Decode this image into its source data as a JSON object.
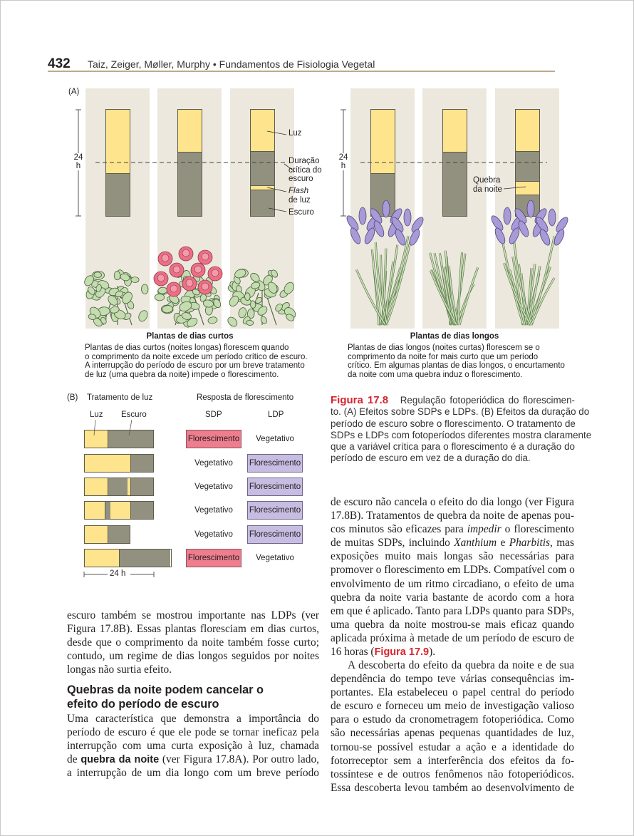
{
  "header": {
    "page_number": "432",
    "running_title": "Taiz, Zeiger, Møller, Murphy • Fundamentos de Fisiologia Vegetal"
  },
  "colors": {
    "light": "#fde48d",
    "dark": "#929180",
    "panel": "#ede8dd",
    "sdp_flowering": "#ee7d8e",
    "ldp_flowering": "#c7bde2",
    "accent_red": "#d7232e",
    "rule": "#bfa98c"
  },
  "figure_a": {
    "label": "(A)",
    "scale_label_top": "24",
    "scale_label_bottom": "h",
    "sdp_panels": [
      {
        "segments": [
          [
            "L",
            14.5
          ],
          [
            "D",
            9.5
          ]
        ],
        "flowering": false
      },
      {
        "segments": [
          [
            "L",
            9.5
          ],
          [
            "D",
            14.5
          ]
        ],
        "flowering": true
      },
      {
        "segments": [
          [
            "L",
            9.5
          ],
          [
            "D",
            7.8
          ],
          [
            "L",
            0.8
          ],
          [
            "D",
            5.9
          ]
        ],
        "flowering": false
      }
    ],
    "ldp_panels": [
      {
        "segments": [
          [
            "L",
            14.5
          ],
          [
            "D",
            9.5
          ]
        ],
        "flowering": true
      },
      {
        "segments": [
          [
            "L",
            9.5
          ],
          [
            "D",
            14.5
          ]
        ],
        "flowering": false
      },
      {
        "segments": [
          [
            "L",
            9.5
          ],
          [
            "D",
            6.8
          ],
          [
            "L",
            2.9
          ],
          [
            "D",
            4.8
          ]
        ],
        "flowering": true
      }
    ],
    "annotations": {
      "light": "Luz",
      "critical": [
        "Duração",
        "crítica do",
        "escuro"
      ],
      "flash": [
        "Flash",
        "de luz"
      ],
      "dark": "Escuro",
      "night_break": [
        "Quebra",
        "da noite"
      ]
    },
    "sdp_caption": {
      "title": "Plantas de dias curtos",
      "lines": [
        "Plantas de dias curtos (noites longas) florescem quando",
        "o comprimento da noite excede um período crítico de escuro.",
        "A interrupção do período de escuro por um breve tratamento",
        "de luz (uma quebra da noite) impede o florescimento."
      ]
    },
    "ldp_caption": {
      "title": "Plantas de dias longos",
      "lines": [
        "Plantas de dias longos (noites curtas) florescem se o",
        "comprimento da noite for mais curto que um período",
        "crítico. Em algumas plantas de dias longos, o encurtamento",
        "da noite com uma quebra induz o florescimento."
      ]
    }
  },
  "figure_b": {
    "label": "(B)",
    "treatment_heading": "Tratamento de luz",
    "response_heading": "Resposta de florescimento",
    "legend_light": "Luz",
    "legend_dark": "Escuro",
    "col_sdp": "SDP",
    "col_ldp": "LDP",
    "scale_label": "24 h",
    "rows": [
      {
        "segments": [
          [
            "L",
            8
          ],
          [
            "D",
            16
          ]
        ],
        "sdp": "Florescimento",
        "ldp": "Vegetativo"
      },
      {
        "segments": [
          [
            "L",
            16
          ],
          [
            "D",
            8
          ]
        ],
        "sdp": "Vegetativo",
        "ldp": "Florescimento"
      },
      {
        "segments": [
          [
            "L",
            8
          ],
          [
            "D",
            7
          ],
          [
            "L",
            1
          ],
          [
            "D",
            8
          ]
        ],
        "sdp": "Vegetativo",
        "ldp": "Florescimento"
      },
      {
        "segments": [
          [
            "L",
            7
          ],
          [
            "D",
            2
          ],
          [
            "L",
            7
          ],
          [
            "D",
            8
          ]
        ],
        "sdp": "Vegetativo",
        "ldp": "Florescimento"
      },
      {
        "segments": [
          [
            "L",
            8
          ],
          [
            "D",
            8
          ]
        ],
        "sdp": "Vegetativo",
        "ldp": "Florescimento"
      },
      {
        "segments": [
          [
            "L",
            12
          ],
          [
            "D",
            18
          ]
        ],
        "sdp": "Florescimento",
        "ldp": "Vegetativo"
      }
    ]
  },
  "figure_caption": {
    "label": "Figura 17.8",
    "lines": [
      "Regulação fotoperiódica do florescimen-",
      "to. (A) Efeitos sobre SDPs e LDPs. (B) Efeitos da duração do",
      "período de escuro sobre o florescimento. O tratamento de",
      "SDPs e LDPs com fotoperíodos diferentes mostra claramente",
      "que a variável crítica para o florescimento é a duração do",
      "período de escuro em vez de a duração do dia."
    ]
  },
  "left_column": {
    "para1": [
      [
        {
          "t": "escuro também se mostrou importante nas LDPs (ver"
        }
      ],
      [
        {
          "t": "Figura 17.8B). Essas plantas floresciam em dias curtos,"
        }
      ],
      [
        {
          "t": "desde que o comprimento da noite também fosse curto;"
        }
      ],
      [
        {
          "t": "contudo, um regime de dias longos seguidos por noites"
        }
      ],
      [
        {
          "t": "longas não surtia efeito."
        }
      ]
    ],
    "heading": [
      "Quebras da noite podem cancelar o",
      "efeito do período de escuro"
    ],
    "para2": [
      [
        {
          "t": "Uma característica que demonstra a importância do"
        }
      ],
      [
        {
          "t": "período de escuro é que ele pode se tornar ineficaz pela"
        }
      ],
      [
        {
          "t": "interrupção com uma curta exposição à luz, chamada"
        }
      ],
      [
        {
          "t": "de "
        },
        {
          "t": "quebra da noite",
          "s": "b"
        },
        {
          "t": " (ver Figura 17.8A). Por outro lado,"
        }
      ],
      [
        {
          "t": "a interrupção de um dia longo com um breve período"
        }
      ]
    ]
  },
  "right_column": {
    "para1": [
      [
        {
          "t": "de escuro não cancela o efeito do dia longo (ver Figura"
        }
      ],
      [
        {
          "t": "17.8B). Tratamentos de quebra da noite de apenas pou-"
        }
      ],
      [
        {
          "t": "cos minutos são eficazes para "
        },
        {
          "t": "impedir",
          "s": "i"
        },
        {
          "t": " o florescimento"
        }
      ],
      [
        {
          "t": "de muitas SDPs, incluindo "
        },
        {
          "t": "Xanthium",
          "s": "i"
        },
        {
          "t": " e "
        },
        {
          "t": "Pharbitis",
          "s": "i"
        },
        {
          "t": ", mas"
        }
      ],
      [
        {
          "t": "exposições muito mais longas são necessárias para"
        }
      ],
      [
        {
          "t": "promover o florescimento em LDPs. Compatível com o"
        }
      ],
      [
        {
          "t": "envolvimento de um ritmo circadiano, o efeito de uma"
        }
      ],
      [
        {
          "t": "quebra da noite varia bastante de acordo com a hora"
        }
      ],
      [
        {
          "t": "em que é aplicado. Tanto para LDPs quanto para SDPs,"
        }
      ],
      [
        {
          "t": "uma quebra da noite mostrou-se mais eficaz quando"
        }
      ],
      [
        {
          "t": "aplicada próxima à metade de um período de escuro de"
        }
      ],
      [
        {
          "t": "16 horas ("
        },
        {
          "t": "Figura 17.9",
          "s": "red"
        },
        {
          "t": ")."
        }
      ]
    ],
    "para2": [
      [
        {
          "t": "A descoberta do efeito da quebra da noite e de sua"
        }
      ],
      [
        {
          "t": "dependência do tempo teve várias consequências im-"
        }
      ],
      [
        {
          "t": "portantes. Ela estabeleceu o papel central do período"
        }
      ],
      [
        {
          "t": "de escuro e forneceu um meio de investigação valioso"
        }
      ],
      [
        {
          "t": "para o estudo da cronometragem fotoperiódica. Como"
        }
      ],
      [
        {
          "t": "são necessárias apenas pequenas quantidades de luz,"
        }
      ],
      [
        {
          "t": "tornou-se possível estudar a ação e a identidade do"
        }
      ],
      [
        {
          "t": "fotorreceptor sem a interferência dos efeitos da fo-"
        }
      ],
      [
        {
          "t": "tossíntese e de outros fenômenos não fotoperiódicos."
        }
      ],
      [
        {
          "t": "Essa descoberta levou também ao desenvolvimento de"
        }
      ]
    ]
  }
}
